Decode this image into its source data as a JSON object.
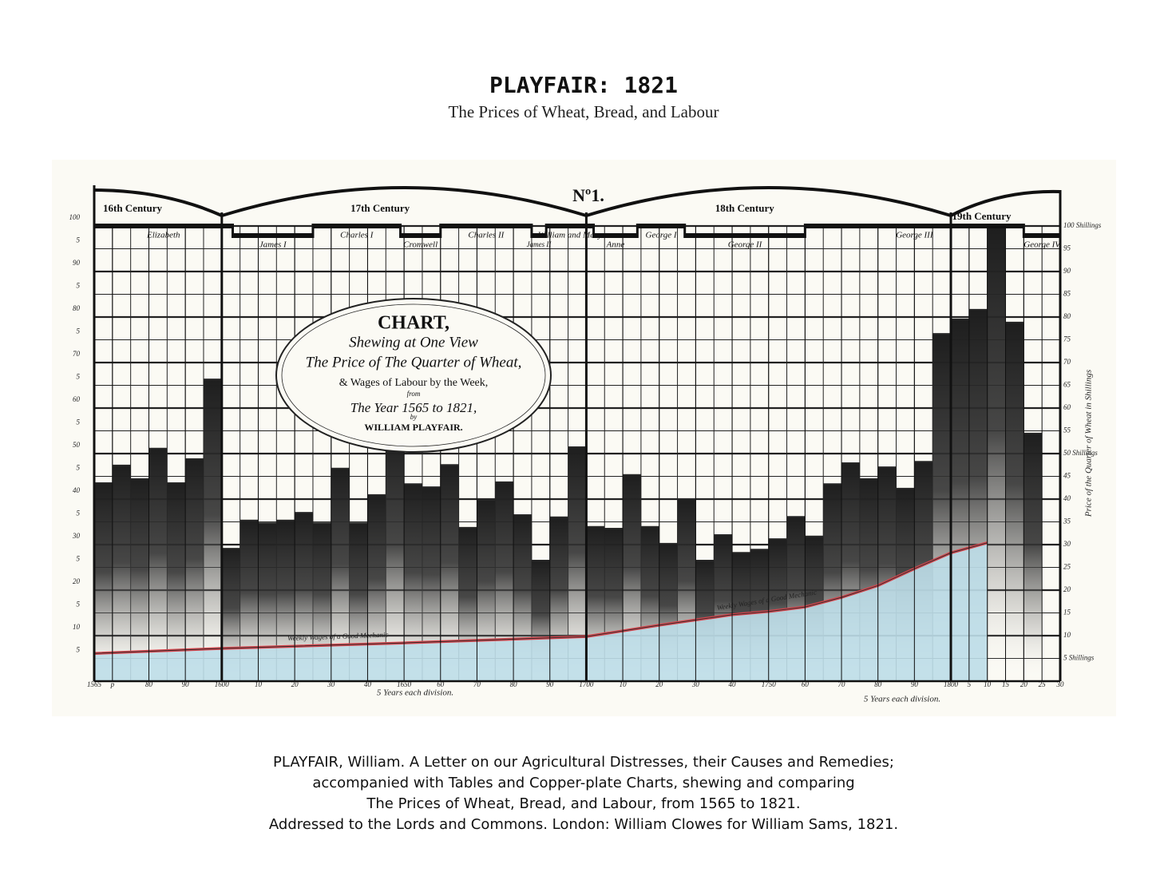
{
  "header": {
    "title": "PLAYFAIR: 1821",
    "subtitle": "The Prices of Wheat, Bread, and Labour"
  },
  "chart_data": {
    "type": "bar",
    "title": "Nº1.",
    "grid": true,
    "xlim": [
      1565,
      1830
    ],
    "ylim": [
      0,
      100
    ],
    "y2lim": [
      0,
      100
    ],
    "xticks": [
      1565,
      {
        "value": 1570,
        "label": "p"
      },
      {
        "value": 1580,
        "label": "80"
      },
      {
        "value": 1590,
        "label": "90"
      },
      1600,
      {
        "value": 1610,
        "label": "10"
      },
      {
        "value": 1620,
        "label": "20"
      },
      {
        "value": 1630,
        "label": "30"
      },
      {
        "value": 1640,
        "label": "40"
      },
      1650,
      {
        "value": 1660,
        "label": "60"
      },
      {
        "value": 1670,
        "label": "70"
      },
      {
        "value": 1680,
        "label": "80"
      },
      {
        "value": 1690,
        "label": "90"
      },
      1700,
      {
        "value": 1710,
        "label": "10"
      },
      {
        "value": 1720,
        "label": "20"
      },
      {
        "value": 1730,
        "label": "30"
      },
      {
        "value": 1740,
        "label": "40"
      },
      1750,
      {
        "value": 1760,
        "label": "60"
      },
      {
        "value": 1770,
        "label": "70"
      },
      {
        "value": 1780,
        "label": "80"
      },
      {
        "value": 1790,
        "label": "90"
      },
      1800,
      {
        "value": 1805,
        "label": "5"
      },
      {
        "value": 1810,
        "label": "10"
      },
      {
        "value": 1815,
        "label": "15"
      },
      {
        "value": 1820,
        "label": "20"
      },
      {
        "value": 1825,
        "label": "25"
      },
      {
        "value": 1830,
        "label": "30"
      }
    ],
    "yticks": [
      100,
      {
        "value": 95,
        "label": "5"
      },
      90,
      {
        "value": 85,
        "label": "5"
      },
      80,
      {
        "value": 75,
        "label": "5"
      },
      70,
      {
        "value": 65,
        "label": "5"
      },
      60,
      {
        "value": 55,
        "label": "5"
      },
      50,
      {
        "value": 45,
        "label": "5"
      },
      40,
      {
        "value": 35,
        "label": "5"
      },
      30,
      {
        "value": 25,
        "label": "5"
      },
      20,
      {
        "value": 15,
        "label": "5"
      },
      10,
      5
    ],
    "y2ticks": [
      {
        "value": 100,
        "label": "100 Shillings"
      },
      95,
      90,
      85,
      80,
      75,
      70,
      65,
      60,
      55,
      {
        "value": 50,
        "label": "50 Shillings"
      },
      45,
      40,
      35,
      30,
      25,
      20,
      15,
      10,
      {
        "value": 5,
        "label": "5 Shillings"
      }
    ],
    "y2label": "Price of the Quarter of Wheat in Shillings",
    "xlabels": [
      "5 Years each division.",
      "5 Years each division."
    ],
    "series": [
      {
        "type": "bar",
        "color": "#262626",
        "x": [
          1565,
          1570,
          1575,
          1580,
          1585,
          1590,
          1595,
          1600,
          1605,
          1610,
          1615,
          1620,
          1625,
          1630,
          1635,
          1640,
          1645,
          1650,
          1655,
          1660,
          1665,
          1670,
          1675,
          1680,
          1685,
          1690,
          1695,
          1700,
          1705,
          1710,
          1715,
          1720,
          1725,
          1730,
          1735,
          1740,
          1745,
          1750,
          1755,
          1760,
          1765,
          1770,
          1775,
          1780,
          1785,
          1790,
          1795,
          1800,
          1805,
          1810,
          1815,
          1820
        ],
        "values": [
          43.5,
          47.4,
          44.4,
          51.1,
          43.5,
          48.8,
          66.3,
          29.1,
          35.3,
          34.7,
          35.3,
          37,
          34.7,
          46.7,
          34.7,
          40.9,
          54.4,
          43.3,
          42.6,
          47.5,
          33.7,
          39.8,
          43.7,
          36.5,
          26.5,
          36,
          51.4,
          33.9,
          33.5,
          45.3,
          33.9,
          30.2,
          40,
          26.5,
          32.1,
          28.2,
          28.9,
          31.2,
          36.1,
          31.8,
          43.3,
          47.9,
          44.4,
          47,
          42.3,
          48.2,
          76.3,
          79.5,
          81.6,
          99.6,
          78.8,
          54.4
        ]
      },
      {
        "type": "area",
        "color": "#d9434b",
        "fill": "#bcdde8",
        "x": [
          1565,
          1600,
          1650,
          1700,
          1720,
          1740,
          1750,
          1760,
          1770,
          1780,
          1790,
          1800,
          1810
        ],
        "values": [
          6.1,
          7.2,
          8.4,
          9.8,
          12.3,
          14.6,
          15.3,
          16.3,
          18.4,
          21,
          24.7,
          28.2,
          30.4
        ],
        "annotations": [
          "Weekly Wages of a Good Mechanic",
          "Weekly Wages of a Good Mechanic"
        ]
      }
    ],
    "centuries": [
      {
        "label": "16th Century",
        "start": 1565,
        "end": 1600
      },
      {
        "label": "17th Century",
        "start": 1600,
        "end": 1700
      },
      {
        "label": "18th Century",
        "start": 1700,
        "end": 1800
      },
      {
        "label": "19th Century",
        "start": 1800,
        "end": 1830
      }
    ],
    "reigns": [
      {
        "name": "Elizabeth",
        "start": 1565,
        "end": 1603
      },
      {
        "name": "James I",
        "start": 1603,
        "end": 1625
      },
      {
        "name": "Charles I",
        "start": 1625,
        "end": 1649
      },
      {
        "name": "Cromwell",
        "start": 1649,
        "end": 1660
      },
      {
        "name": "Charles II",
        "start": 1660,
        "end": 1685
      },
      {
        "name": "James II",
        "start": 1685,
        "end": 1689
      },
      {
        "name": "William and Mary",
        "start": 1689,
        "end": 1702
      },
      {
        "name": "Anne",
        "start": 1702,
        "end": 1714
      },
      {
        "name": "George I",
        "start": 1714,
        "end": 1727
      },
      {
        "name": "George II",
        "start": 1727,
        "end": 1760
      },
      {
        "name": "George III",
        "start": 1760,
        "end": 1820
      },
      {
        "name": "George IV",
        "start": 1820,
        "end": 1830
      }
    ],
    "cartouche": [
      "CHART,",
      "Shewing at One View",
      "The Price of The Quarter of Wheat,",
      "& Wages of Labour by the Week,",
      "from",
      "The Year 1565 to 1821,",
      "by",
      "WILLIAM PLAYFAIR."
    ]
  },
  "caption": [
    "PLAYFAIR, William. A Letter on our Agricultural Distresses, their Causes and Remedies;",
    "accompanied with Tables and Copper-plate Charts, shewing and comparing",
    "The Prices of Wheat, Bread, and Labour, from 1565 to 1821.",
    "Addressed to the Lords and Commons. London: William Clowes for William Sams, 1821."
  ]
}
